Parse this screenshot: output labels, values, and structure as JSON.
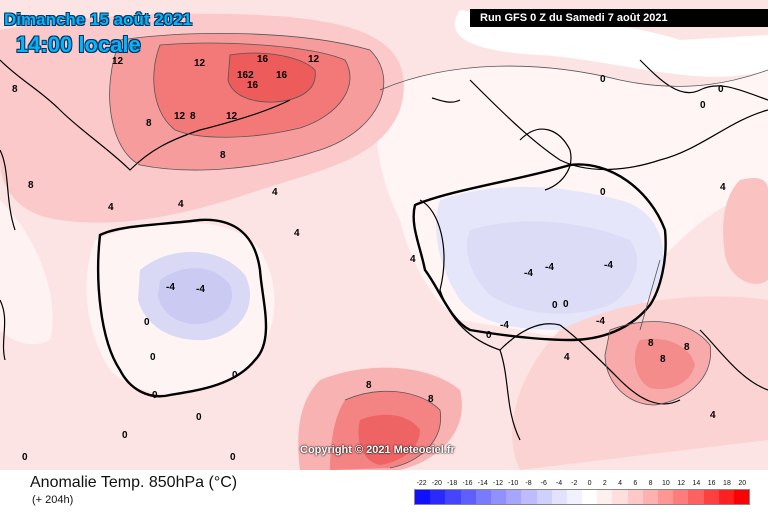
{
  "header": {
    "date": "Dimanche 15 août 2021",
    "time": "14:00 locale",
    "run": "Run GFS 0 Z du Samedi 7 août 2021"
  },
  "copyright": "Copyright © 2021 Meteociel.fr",
  "footer": {
    "title": "Anomalie Temp. 850hPa (°C)",
    "subtitle": "(+ 204h)"
  },
  "legend": {
    "labels": [
      "-22",
      "-20",
      "-18",
      "-16",
      "-14",
      "-12",
      "-10",
      "-8",
      "-6",
      "-4",
      "-2",
      "0",
      "2",
      "4",
      "6",
      "8",
      "10",
      "12",
      "14",
      "16",
      "18",
      "20"
    ],
    "colors": [
      "#1010ff",
      "#2a2aff",
      "#4545ff",
      "#5f5fff",
      "#7a7aff",
      "#9090ff",
      "#a6a6ff",
      "#bcbcff",
      "#d0d0ff",
      "#e2e2ff",
      "#f2f2ff",
      "#ffffff",
      "#fff0f0",
      "#ffdede",
      "#ffc8c8",
      "#ffb0b0",
      "#ff9696",
      "#ff7c7c",
      "#ff6060",
      "#ff4040",
      "#ff2020",
      "#ff0000"
    ]
  },
  "map_labels": [
    "12",
    "16",
    "12",
    "162",
    "16",
    "16",
    "12",
    "8",
    "12",
    "8",
    "12",
    "8",
    "4",
    "4",
    "4",
    "8",
    "4",
    "0",
    "0",
    "0",
    "-4",
    "-4",
    "-4",
    "-4",
    "-4",
    "-4",
    "-4",
    "0",
    "0",
    "0",
    "0",
    "0",
    "0",
    "8",
    "8",
    "8",
    "8",
    "4",
    "4",
    "8",
    "8",
    "4",
    "4",
    "0",
    "0",
    "0",
    "0",
    "0",
    "0"
  ]
}
